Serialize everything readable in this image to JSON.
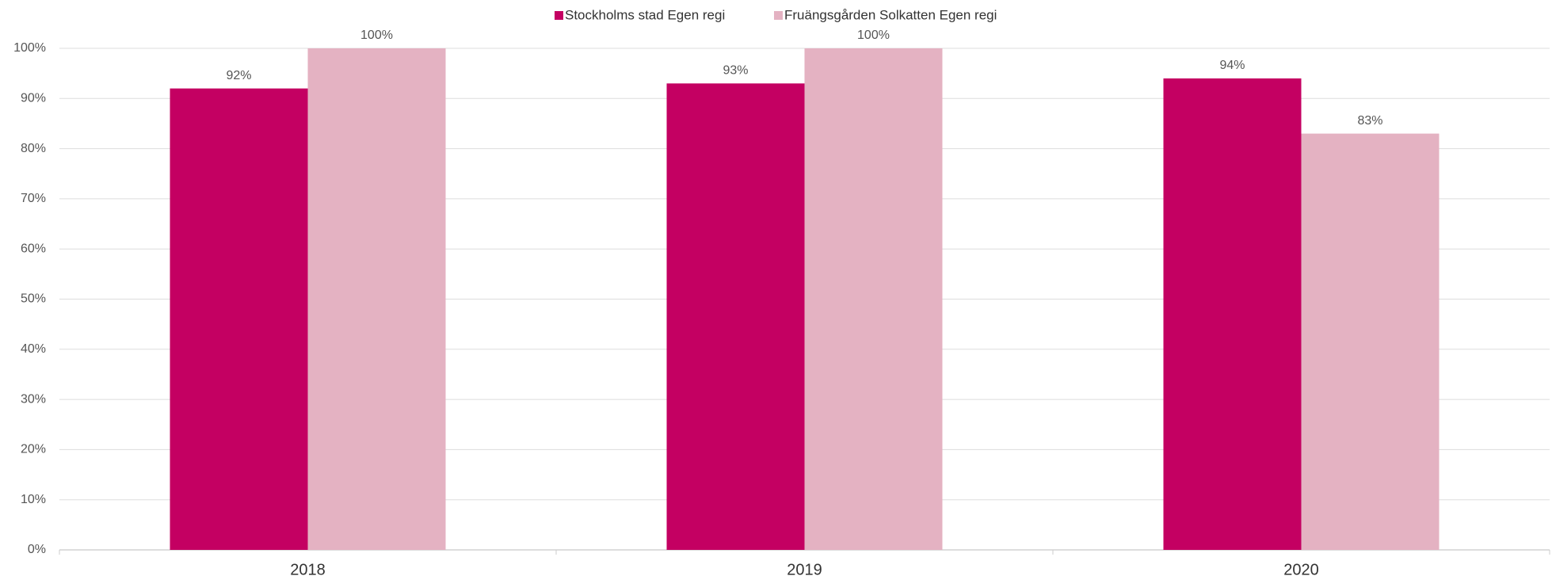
{
  "chart_data": {
    "type": "bar",
    "categories": [
      "2018",
      "2019",
      "2020"
    ],
    "series": [
      {
        "name": "Stockholms stad Egen regi",
        "color": "#c40062",
        "values": [
          92,
          93,
          94
        ],
        "value_labels": [
          "92%",
          "93%",
          "94%"
        ]
      },
      {
        "name": "Fruängsgården Solkatten Egen regi",
        "color": "#e4b2c2",
        "values": [
          100,
          100,
          83
        ],
        "value_labels": [
          "100%",
          "100%",
          "83%"
        ]
      }
    ],
    "ylim": [
      0,
      100
    ],
    "yticks": [
      {
        "value": 0,
        "label": "0%"
      },
      {
        "value": 10,
        "label": "10%"
      },
      {
        "value": 20,
        "label": "20%"
      },
      {
        "value": 30,
        "label": "30%"
      },
      {
        "value": 40,
        "label": "40%"
      },
      {
        "value": 50,
        "label": "50%"
      },
      {
        "value": 60,
        "label": "60%"
      },
      {
        "value": 70,
        "label": "70%"
      },
      {
        "value": 80,
        "label": "80%"
      },
      {
        "value": 90,
        "label": "90%"
      },
      {
        "value": 100,
        "label": "100%"
      }
    ],
    "grid": true,
    "legend": "top"
  }
}
